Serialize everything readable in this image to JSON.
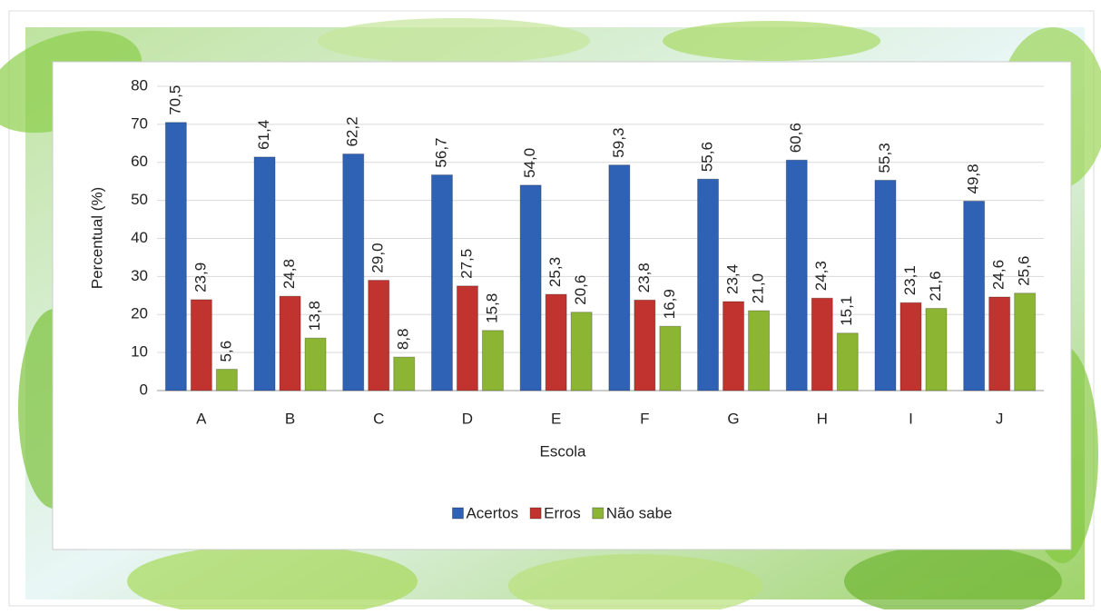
{
  "chart_data": {
    "type": "bar",
    "x_label": "Escola",
    "y_label": "Percentual (%)",
    "categories": [
      "A",
      "B",
      "C",
      "D",
      "E",
      "F",
      "G",
      "H",
      "I",
      "J"
    ],
    "series": [
      {
        "name": "Acertos",
        "color": "#2f62b5",
        "values": [
          70.5,
          61.4,
          62.2,
          56.7,
          54.0,
          59.3,
          55.6,
          60.6,
          55.3,
          49.8
        ],
        "value_labels": [
          "70,5",
          "61,4",
          "62,2",
          "56,7",
          "54,0",
          "59,3",
          "55,6",
          "60,6",
          "55,3",
          "49,8"
        ]
      },
      {
        "name": "Erros",
        "color": "#c0332f",
        "values": [
          23.9,
          24.8,
          29.0,
          27.5,
          25.3,
          23.8,
          23.4,
          24.3,
          23.1,
          24.6
        ],
        "value_labels": [
          "23,9",
          "24,8",
          "29,0",
          "27,5",
          "25,3",
          "23,8",
          "23,4",
          "24,3",
          "23,1",
          "24,6"
        ]
      },
      {
        "name": "Não sabe",
        "color": "#8cb533",
        "values": [
          5.6,
          13.8,
          8.8,
          15.8,
          20.6,
          16.9,
          21.0,
          15.1,
          21.6,
          25.6
        ],
        "value_labels": [
          "5,6",
          "13,8",
          "8,8",
          "15,8",
          "20,6",
          "16,9",
          "21,0",
          "15,1",
          "21,6",
          "25,6"
        ]
      }
    ],
    "ylim": [
      0,
      80
    ],
    "yticks": [
      0,
      10,
      20,
      30,
      40,
      50,
      60,
      70,
      80
    ],
    "grid": true,
    "legend": "bottom"
  }
}
